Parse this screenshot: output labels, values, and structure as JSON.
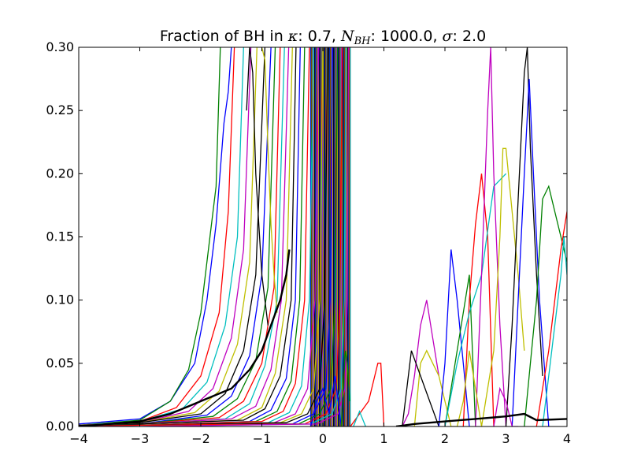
{
  "chart_data": {
    "type": "line",
    "title": {
      "prefix": "Fraction of BH in ",
      "kappa_symbol": "κ",
      "kappa_value": ": 0.7, ",
      "n_symbol": "N",
      "n_subscript": "BH",
      "n_value": ": 1000.0, ",
      "sigma_symbol": "σ",
      "sigma_value": ": 2.0"
    },
    "xlabel": "",
    "ylabel": "",
    "xlim": [
      -4,
      4
    ],
    "ylim": [
      0,
      0.3
    ],
    "x_ticks": [
      -4,
      -3,
      -2,
      -1,
      0,
      1,
      2,
      3,
      4
    ],
    "x_tick_labels": [
      "−4",
      "−3",
      "−2",
      "−1",
      "0",
      "1",
      "2",
      "3",
      "4"
    ],
    "y_ticks": [
      0,
      0.05,
      0.1,
      0.15,
      0.2,
      0.25,
      0.3
    ],
    "y_tick_labels": [
      "0.00",
      "0.05",
      "0.10",
      "0.15",
      "0.20",
      "0.25",
      "0.30"
    ],
    "grid": false,
    "legend": "none",
    "palette": [
      "#0000ff",
      "#008000",
      "#ff0000",
      "#00bfbf",
      "#bf00bf",
      "#bfbf00",
      "#000000"
    ],
    "series": [
      {
        "x": [
          -4,
          -3,
          -2.5,
          -2.1,
          -1.9,
          -1.75,
          -1.62,
          -1.55,
          -1.5
        ],
        "y": [
          0.002,
          0.006,
          0.02,
          0.05,
          0.1,
          0.16,
          0.24,
          0.265,
          0.3
        ]
      },
      {
        "x": [
          -4,
          -3,
          -2.5,
          -2.2,
          -2.0,
          -1.85,
          -1.75,
          -1.68
        ],
        "y": [
          0.001,
          0.005,
          0.02,
          0.045,
          0.09,
          0.15,
          0.19,
          0.3
        ]
      },
      {
        "x": [
          -4,
          -3,
          -2.4,
          -2.0,
          -1.7,
          -1.55,
          -1.45
        ],
        "y": [
          0.001,
          0.004,
          0.015,
          0.04,
          0.09,
          0.17,
          0.3
        ]
      },
      {
        "x": [
          -4,
          -3,
          -2.3,
          -1.9,
          -1.6,
          -1.4,
          -1.3
        ],
        "y": [
          0.001,
          0.004,
          0.014,
          0.035,
          0.08,
          0.15,
          0.3
        ]
      },
      {
        "x": [
          -4,
          -3,
          -2.2,
          -1.8,
          -1.5,
          -1.3,
          -1.18
        ],
        "y": [
          0.001,
          0.003,
          0.012,
          0.03,
          0.07,
          0.14,
          0.3
        ]
      },
      {
        "x": [
          -4,
          -3,
          -2.1,
          -1.7,
          -1.4,
          -1.2,
          -1.08
        ],
        "y": [
          0.001,
          0.003,
          0.011,
          0.028,
          0.065,
          0.13,
          0.3
        ]
      },
      {
        "x": [
          -4,
          -3,
          -2.0,
          -1.6,
          -1.3,
          -1.1,
          -0.95
        ],
        "y": [
          0.001,
          0.003,
          0.01,
          0.026,
          0.06,
          0.12,
          0.3
        ]
      },
      {
        "x": [
          -4,
          -3,
          -1.9,
          -1.5,
          -1.2,
          -1.0,
          -0.85
        ],
        "y": [
          0.001,
          0.002,
          0.009,
          0.024,
          0.056,
          0.12,
          0.3
        ]
      },
      {
        "x": [
          -4,
          -3,
          -1.8,
          -1.4,
          -1.1,
          -0.9,
          -0.78
        ],
        "y": [
          0.001,
          0.002,
          0.008,
          0.022,
          0.052,
          0.11,
          0.3
        ]
      },
      {
        "x": [
          -4,
          -3,
          -1.7,
          -1.3,
          -1.0,
          -0.8,
          -0.7
        ],
        "y": [
          0.001,
          0.002,
          0.007,
          0.02,
          0.05,
          0.11,
          0.3
        ]
      },
      {
        "x": [
          -4,
          -3,
          -1.6,
          -1.2,
          -0.95,
          -0.75,
          -0.63
        ],
        "y": [
          0.001,
          0.002,
          0.006,
          0.018,
          0.048,
          0.1,
          0.3
        ]
      },
      {
        "x": [
          -4,
          -3,
          -1.5,
          -1.1,
          -0.85,
          -0.68,
          -0.56
        ],
        "y": [
          0.001,
          0.002,
          0.006,
          0.016,
          0.045,
          0.1,
          0.3
        ]
      },
      {
        "x": [
          -4,
          -3,
          -1.4,
          -1.0,
          -0.78,
          -0.6,
          -0.5
        ],
        "y": [
          0.001,
          0.002,
          0.005,
          0.015,
          0.042,
          0.1,
          0.3
        ]
      },
      {
        "x": [
          -4,
          -3,
          -1.3,
          -0.95,
          -0.7,
          -0.52,
          -0.44
        ],
        "y": [
          0.001,
          0.002,
          0.005,
          0.014,
          0.04,
          0.1,
          0.3
        ]
      },
      {
        "x": [
          -4,
          -3,
          -1.2,
          -0.85,
          -0.6,
          -0.45,
          -0.37
        ],
        "y": [
          0.001,
          0.001,
          0.004,
          0.013,
          0.038,
          0.1,
          0.3
        ]
      },
      {
        "x": [
          -4,
          -3,
          -1.1,
          -0.75,
          -0.52,
          -0.38,
          -0.3
        ],
        "y": [
          0.001,
          0.001,
          0.004,
          0.012,
          0.036,
          0.1,
          0.3
        ]
      },
      {
        "x": [
          -4,
          -3,
          -1.0,
          -0.65,
          -0.45,
          -0.3,
          -0.22
        ],
        "y": [
          0.001,
          0.001,
          0.004,
          0.012,
          0.034,
          0.1,
          0.3
        ]
      },
      {
        "x": [
          -4,
          -3,
          -0.9,
          -0.55,
          -0.35,
          -0.22,
          -0.15
        ],
        "y": [
          0.001,
          0.001,
          0.003,
          0.011,
          0.032,
          0.1,
          0.3
        ]
      },
      {
        "x": [
          -4,
          -3,
          -0.8,
          -0.45,
          -0.25,
          -0.13,
          -0.07
        ],
        "y": [
          0.001,
          0.001,
          0.003,
          0.01,
          0.03,
          0.1,
          0.3
        ]
      },
      {
        "x": [
          -4,
          -3,
          -0.7,
          -0.35,
          -0.15,
          -0.05,
          0.0
        ],
        "y": [
          0.001,
          0.001,
          0.003,
          0.01,
          0.03,
          0.1,
          0.3
        ]
      },
      {
        "x": [
          -4,
          -3,
          -0.6,
          -0.25,
          -0.05,
          0.03,
          0.08
        ],
        "y": [
          0.001,
          0.001,
          0.003,
          0.01,
          0.03,
          0.1,
          0.3
        ]
      },
      {
        "x": [
          -4,
          -3,
          -0.5,
          -0.15,
          0.05,
          0.12,
          0.16
        ],
        "y": [
          0.0,
          0.001,
          0.002,
          0.01,
          0.03,
          0.1,
          0.3
        ]
      },
      {
        "x": [
          -4,
          -3,
          -0.4,
          -0.05,
          0.13,
          0.2,
          0.24
        ],
        "y": [
          0.0,
          0.001,
          0.002,
          0.01,
          0.03,
          0.1,
          0.3
        ]
      },
      {
        "x": [
          -4,
          -3,
          -0.3,
          0.05,
          0.22,
          0.28,
          0.32
        ],
        "y": [
          0.0,
          0.001,
          0.002,
          0.01,
          0.03,
          0.1,
          0.3
        ]
      },
      {
        "x": [
          -4,
          -3,
          -0.2,
          0.15,
          0.3,
          0.35,
          0.38
        ],
        "y": [
          0.0,
          0.0,
          0.002,
          0.01,
          0.03,
          0.1,
          0.3
        ]
      },
      {
        "x": [
          -4,
          -3,
          -0.1,
          0.25,
          0.36,
          0.4,
          0.42
        ],
        "y": [
          0.0,
          0.0,
          0.002,
          0.01,
          0.03,
          0.1,
          0.3
        ]
      },
      {
        "x": [
          -1.0,
          -0.95,
          -0.9,
          -0.85,
          -0.8,
          -0.75
        ],
        "y": [
          0.3,
          0.29,
          0.22,
          0.16,
          0.12,
          0.09
        ]
      },
      {
        "x": [
          -1.25,
          -1.2,
          -1.15,
          -1.1,
          -1.0,
          -0.9
        ],
        "y": [
          0.25,
          0.3,
          0.28,
          0.2,
          0.12,
          0.08
        ]
      },
      {
        "x": [
          -0.2,
          -0.1,
          0.0,
          0.1,
          0.2,
          0.3
        ],
        "y": [
          0.0,
          0.02,
          0.03,
          0.01,
          0.04,
          0.0
        ]
      },
      {
        "x": [
          0.3,
          0.33,
          0.37,
          0.4,
          0.44
        ],
        "y": [
          0.0,
          0.03,
          0.06,
          0.05,
          0.02
        ]
      },
      {
        "x": [
          0.45,
          0.6,
          0.75,
          0.85,
          0.9,
          0.95,
          1.0
        ],
        "y": [
          0.0,
          0.01,
          0.02,
          0.04,
          0.05,
          0.05,
          0.0
        ]
      },
      {
        "x": [
          0.5,
          0.6,
          0.7
        ],
        "y": [
          0.0,
          0.012,
          0.0
        ]
      },
      {
        "x": [
          1.3,
          1.4,
          1.5,
          1.6,
          1.7,
          1.8,
          1.9
        ],
        "y": [
          0.0,
          0.01,
          0.04,
          0.08,
          0.1,
          0.07,
          0.04
        ]
      },
      {
        "x": [
          1.5,
          1.6,
          1.7,
          1.8,
          1.9,
          2.0,
          2.1,
          2.2
        ],
        "y": [
          0.0,
          0.05,
          0.06,
          0.05,
          0.04,
          0.02,
          0.0,
          0.0
        ]
      },
      {
        "x": [
          1.3,
          1.45,
          1.6,
          1.75,
          1.9
        ],
        "y": [
          0.0,
          0.06,
          0.04,
          0.02,
          0.0
        ]
      },
      {
        "x": [
          1.9,
          2.0,
          2.1,
          2.2,
          2.3,
          2.4
        ],
        "y": [
          0.0,
          0.05,
          0.14,
          0.1,
          0.05,
          0.0
        ]
      },
      {
        "x": [
          2.0,
          2.1,
          2.2,
          2.3,
          2.4,
          2.5
        ],
        "y": [
          0.0,
          0.03,
          0.06,
          0.09,
          0.12,
          0.0
        ]
      },
      {
        "x": [
          2.3,
          2.4,
          2.5,
          2.6,
          2.7,
          2.8
        ],
        "y": [
          0.0,
          0.1,
          0.16,
          0.2,
          0.15,
          0.0
        ]
      },
      {
        "x": [
          2.0,
          2.2,
          2.4,
          2.6,
          2.8,
          3.0
        ],
        "y": [
          0.0,
          0.05,
          0.09,
          0.12,
          0.19,
          0.2
        ]
      },
      {
        "x": [
          2.5,
          2.6,
          2.7,
          2.75,
          2.8,
          2.9,
          3.0
        ],
        "y": [
          0.0,
          0.12,
          0.25,
          0.3,
          0.2,
          0.08,
          0.0
        ]
      },
      {
        "x": [
          2.6,
          2.8,
          2.9,
          2.95,
          3.0,
          3.1,
          3.2,
          3.3
        ],
        "y": [
          0.0,
          0.06,
          0.15,
          0.22,
          0.22,
          0.17,
          0.12,
          0.06
        ]
      },
      {
        "x": [
          3.0,
          3.1,
          3.2,
          3.3,
          3.35,
          3.4,
          3.5,
          3.6
        ],
        "y": [
          0.0,
          0.08,
          0.18,
          0.28,
          0.3,
          0.22,
          0.12,
          0.04
        ]
      },
      {
        "x": [
          3.1,
          3.2,
          3.3,
          3.38,
          3.45,
          3.55,
          3.7
        ],
        "y": [
          0.0,
          0.1,
          0.2,
          0.275,
          0.2,
          0.1,
          0.0
        ]
      },
      {
        "x": [
          3.3,
          3.4,
          3.5,
          3.6,
          3.7,
          3.8,
          3.9,
          4.0
        ],
        "y": [
          0.0,
          0.05,
          0.1,
          0.18,
          0.19,
          0.17,
          0.15,
          0.13
        ]
      },
      {
        "x": [
          3.5,
          3.6,
          3.7,
          3.8,
          3.9,
          4.0
        ],
        "y": [
          0.0,
          0.03,
          0.06,
          0.1,
          0.14,
          0.17
        ]
      },
      {
        "x": [
          3.6,
          3.7,
          3.8,
          3.9,
          3.95,
          4.0
        ],
        "y": [
          0.0,
          0.04,
          0.08,
          0.12,
          0.15,
          0.12
        ]
      },
      {
        "x": [
          2.8,
          2.9,
          3.0,
          3.1,
          3.2
        ],
        "y": [
          0.0,
          0.03,
          0.02,
          0.0,
          0.0
        ]
      },
      {
        "x": [
          2.2,
          2.3,
          2.4,
          2.5,
          2.6
        ],
        "y": [
          0.0,
          0.02,
          0.06,
          0.03,
          0.0
        ]
      }
    ],
    "emphasis_series": {
      "x": [
        -4,
        -3,
        -2.5,
        -2.0,
        -1.5,
        -1.2,
        -1.0,
        -0.85,
        -0.7,
        -0.6,
        -0.55
      ],
      "y": [
        0.0,
        0.004,
        0.01,
        0.02,
        0.03,
        0.045,
        0.06,
        0.08,
        0.1,
        0.12,
        0.14
      ]
    },
    "baseline_series": {
      "x": [
        1.2,
        1.5,
        2.0,
        2.5,
        3.0,
        3.3,
        3.5,
        4.0
      ],
      "y": [
        0.0,
        0.002,
        0.004,
        0.006,
        0.008,
        0.01,
        0.005,
        0.006
      ]
    },
    "dense_band": {
      "x_start": -0.2,
      "x_end": 0.45
    }
  }
}
